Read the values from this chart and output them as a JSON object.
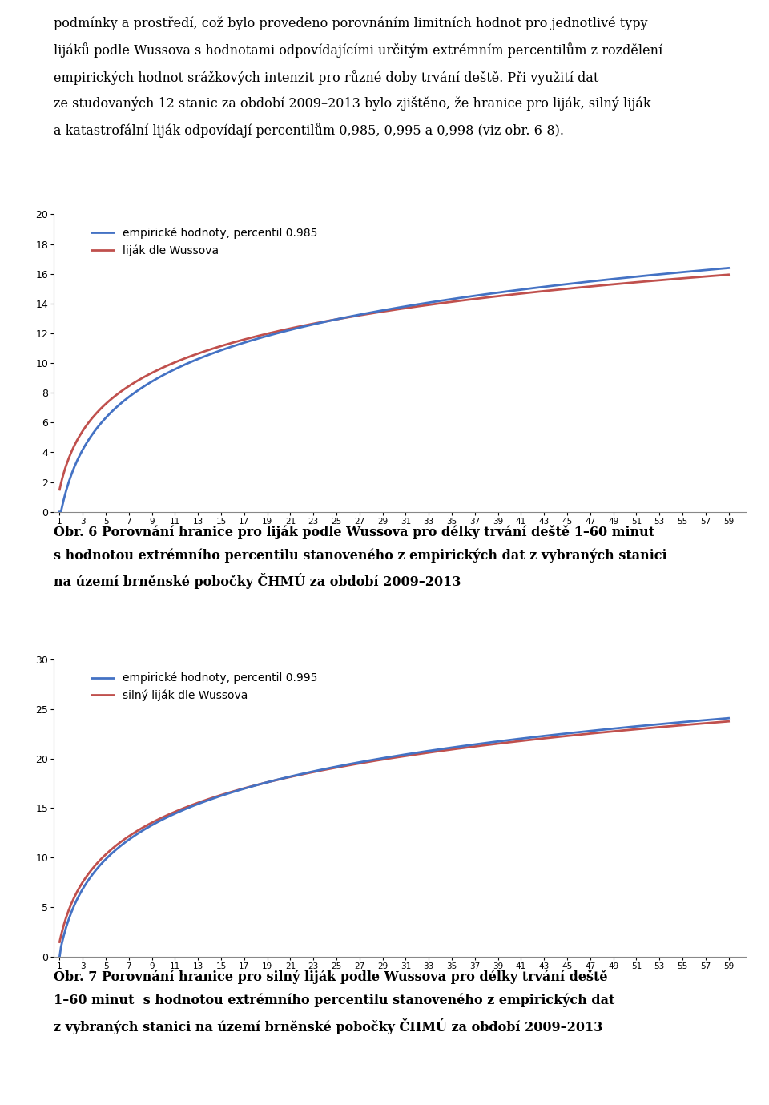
{
  "text_block_lines": [
    "podmínky a prostředí, což bylo provedeno porovnáním limitních hodnot pro jednotlivé typy",
    "lijáků podle Wussova s hodnotami odpovídajícími určitým extrémním percentilům z rozdělení",
    "empirických hodnot srážkových intenzit pro různé doby trvání deště. Při využití dat",
    "ze studovaných 12 stanic za období 2009–2013 bylo zjištěno, že hranice pro liják, silný liják",
    "a katastrofální liják odpovídají percentilům 0,985, 0,995 a 0,998 (viz obr. 6-8)."
  ],
  "chart1": {
    "ylim": [
      0,
      20
    ],
    "yticks": [
      0,
      2,
      4,
      6,
      8,
      10,
      12,
      14,
      16,
      18,
      20
    ],
    "xticks": [
      1,
      3,
      5,
      7,
      9,
      11,
      13,
      15,
      17,
      19,
      21,
      23,
      25,
      27,
      29,
      31,
      33,
      35,
      37,
      39,
      41,
      43,
      45,
      47,
      49,
      51,
      53,
      55,
      57,
      59
    ],
    "legend1": "empirické hodnoty, percentil 0.985",
    "legend2": "liják dle Wussova",
    "color_empirical": "#4472C4",
    "color_wussova": "#C0504D",
    "line_width": 2.0
  },
  "chart2": {
    "ylim": [
      0,
      30
    ],
    "yticks": [
      0,
      5,
      10,
      15,
      20,
      25,
      30
    ],
    "xticks": [
      1,
      3,
      5,
      7,
      9,
      11,
      13,
      15,
      17,
      19,
      21,
      23,
      25,
      27,
      29,
      31,
      33,
      35,
      37,
      39,
      41,
      43,
      45,
      47,
      49,
      51,
      53,
      55,
      57,
      59
    ],
    "legend1": "empirické hodnoty, percentil 0.995",
    "legend2": "silný liják dle Wussova",
    "color_empirical": "#4472C4",
    "color_wussova": "#C0504D",
    "line_width": 2.0
  },
  "caption1_lines": [
    "Obr. 6 Porovnání hranice pro liják podle Wussova pro délky trvání deště 1–60 minut",
    "s hodnotou extrémního percentilu stanoveného z empirických dat z vybraných stanici",
    "na území brněnské pobočky ČHMÚ za období 2009–2013"
  ],
  "caption2_lines": [
    "Obr. 7 Porovnání hranice pro silný liják podle Wussova pro délky trvání deště",
    "1–60 minut  s hodnotou extrémního percentilu stanoveného z empirických dat",
    "z vybraných stanici na území brněnské pobočky ČHMÚ za období 2009–2013"
  ],
  "background_color": "#FFFFFF",
  "plot_bg": "#FFFFFF",
  "border_color": "#808080"
}
